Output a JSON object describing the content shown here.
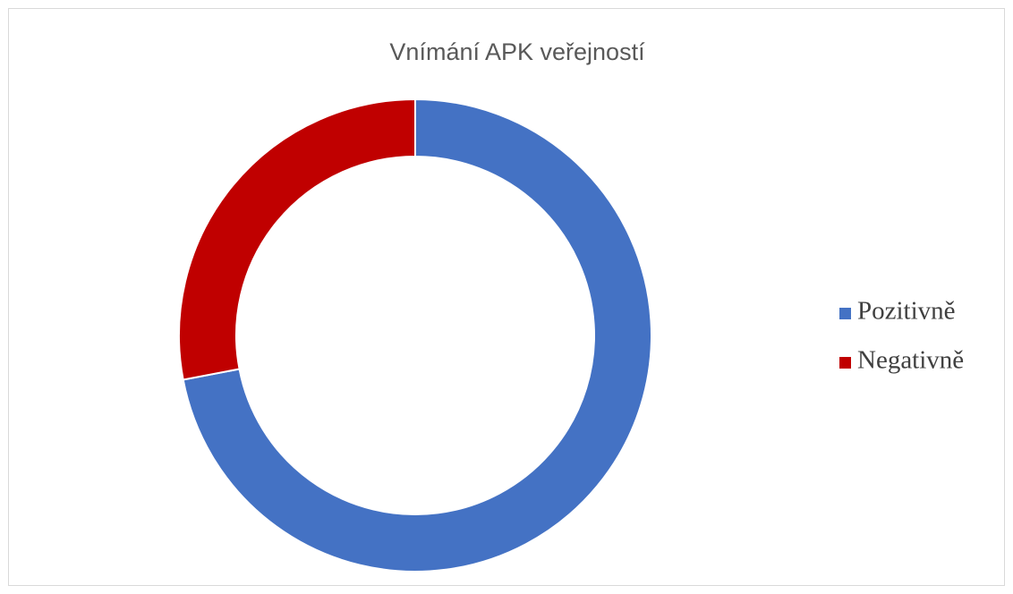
{
  "chart_data": {
    "type": "donut",
    "title": "Vnímání APK veřejností",
    "categories": [
      "Pozitivně",
      "Negativně"
    ],
    "values": [
      72,
      28
    ],
    "colors": [
      "#4472c4",
      "#c00000"
    ],
    "legend": "right"
  }
}
